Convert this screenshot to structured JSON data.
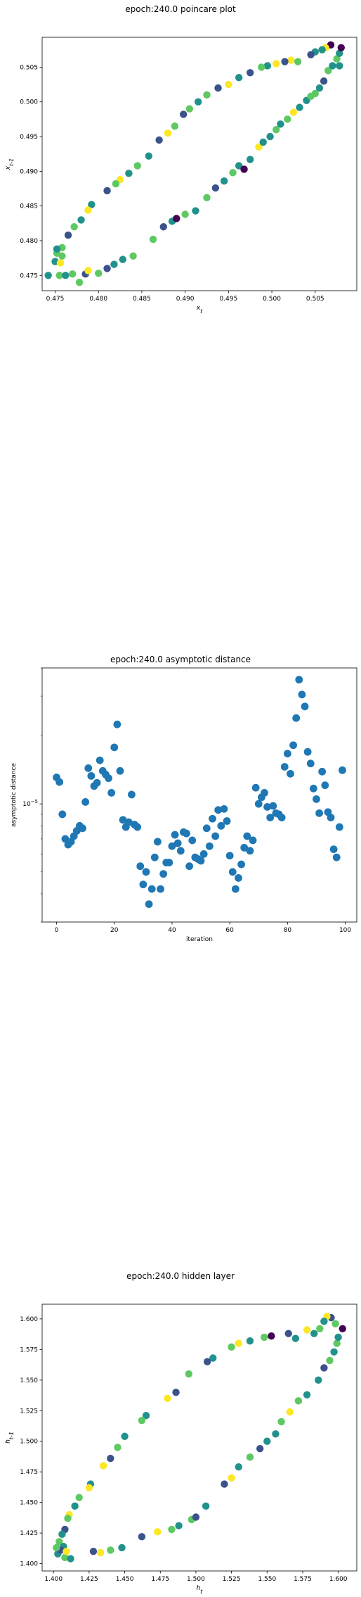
{
  "chart_data": [
    {
      "type": "scatter",
      "title": "epoch:240.0 poincare plot",
      "xlabel": "x_t",
      "ylabel": "x_{t-1}",
      "xlim": [
        0.4735,
        0.5098
      ],
      "ylim": [
        0.4728,
        0.5093
      ],
      "xticks": [
        "0.475",
        "0.480",
        "0.485",
        "0.490",
        "0.495",
        "0.500",
        "0.505"
      ],
      "yticks": [
        "0.475",
        "0.480",
        "0.485",
        "0.490",
        "0.495",
        "0.500",
        "0.505"
      ],
      "grid": false,
      "colormap": [
        "#440154",
        "#3b528b",
        "#21918c",
        "#5ec962",
        "#fde725"
      ],
      "points": [
        [
          0.4742,
          0.475,
          2
        ],
        [
          0.4755,
          0.475,
          3
        ],
        [
          0.4762,
          0.475,
          2
        ],
        [
          0.477,
          0.4752,
          3
        ],
        [
          0.4778,
          0.474,
          3
        ],
        [
          0.4785,
          0.4752,
          1
        ],
        [
          0.4788,
          0.4757,
          4
        ],
        [
          0.48,
          0.4753,
          3
        ],
        [
          0.481,
          0.476,
          1
        ],
        [
          0.4818,
          0.4766,
          2
        ],
        [
          0.4828,
          0.4773,
          2
        ],
        [
          0.484,
          0.4778,
          3
        ],
        [
          0.4863,
          0.4802,
          3
        ],
        [
          0.4875,
          0.482,
          1
        ],
        [
          0.4885,
          0.4828,
          2
        ],
        [
          0.489,
          0.4832,
          0
        ],
        [
          0.49,
          0.4838,
          3
        ],
        [
          0.4912,
          0.4843,
          2
        ],
        [
          0.4925,
          0.4862,
          3
        ],
        [
          0.4935,
          0.4876,
          1
        ],
        [
          0.4945,
          0.4886,
          2
        ],
        [
          0.4955,
          0.4898,
          3
        ],
        [
          0.4962,
          0.4908,
          2
        ],
        [
          0.4968,
          0.4903,
          0
        ],
        [
          0.4975,
          0.4917,
          2
        ],
        [
          0.4985,
          0.4935,
          4
        ],
        [
          0.499,
          0.4942,
          2
        ],
        [
          0.4998,
          0.495,
          2
        ],
        [
          0.5005,
          0.496,
          3
        ],
        [
          0.501,
          0.4968,
          2
        ],
        [
          0.5018,
          0.4975,
          3
        ],
        [
          0.5025,
          0.4985,
          4
        ],
        [
          0.5032,
          0.4992,
          2
        ],
        [
          0.504,
          0.5002,
          2
        ],
        [
          0.5045,
          0.5008,
          3
        ],
        [
          0.505,
          0.5012,
          3
        ],
        [
          0.5055,
          0.502,
          2
        ],
        [
          0.506,
          0.503,
          1
        ],
        [
          0.5065,
          0.5045,
          3
        ],
        [
          0.507,
          0.5052,
          2
        ],
        [
          0.5075,
          0.5062,
          3
        ],
        [
          0.5078,
          0.507,
          2
        ],
        [
          0.508,
          0.5078,
          0
        ],
        [
          0.5078,
          0.5052,
          2
        ],
        [
          0.5068,
          0.5082,
          0
        ],
        [
          0.5062,
          0.5078,
          4
        ],
        [
          0.5058,
          0.5075,
          2
        ],
        [
          0.505,
          0.5072,
          2
        ],
        [
          0.5045,
          0.5068,
          1
        ],
        [
          0.503,
          0.5058,
          3
        ],
        [
          0.5022,
          0.506,
          4
        ],
        [
          0.5015,
          0.5058,
          1
        ],
        [
          0.5005,
          0.5055,
          4
        ],
        [
          0.4995,
          0.5052,
          2
        ],
        [
          0.4988,
          0.505,
          3
        ],
        [
          0.4975,
          0.5042,
          1
        ],
        [
          0.4962,
          0.5035,
          2
        ],
        [
          0.495,
          0.5025,
          4
        ],
        [
          0.4938,
          0.502,
          1
        ],
        [
          0.4925,
          0.501,
          3
        ],
        [
          0.4915,
          0.5,
          2
        ],
        [
          0.4905,
          0.499,
          3
        ],
        [
          0.4898,
          0.4982,
          1
        ],
        [
          0.4888,
          0.4965,
          3
        ],
        [
          0.488,
          0.4955,
          4
        ],
        [
          0.487,
          0.4945,
          1
        ],
        [
          0.4858,
          0.4922,
          2
        ],
        [
          0.4845,
          0.4908,
          3
        ],
        [
          0.4835,
          0.4897,
          2
        ],
        [
          0.4825,
          0.4888,
          4
        ],
        [
          0.482,
          0.4882,
          3
        ],
        [
          0.481,
          0.4872,
          1
        ],
        [
          0.4792,
          0.4852,
          2
        ],
        [
          0.4788,
          0.4844,
          4
        ],
        [
          0.478,
          0.483,
          2
        ],
        [
          0.4772,
          0.482,
          3
        ],
        [
          0.4765,
          0.4808,
          1
        ],
        [
          0.4758,
          0.479,
          3
        ],
        [
          0.4752,
          0.4782,
          3
        ],
        [
          0.475,
          0.477,
          2
        ],
        [
          0.4756,
          0.4768,
          4
        ],
        [
          0.4752,
          0.4788,
          2
        ],
        [
          0.4758,
          0.4778,
          3
        ]
      ]
    },
    {
      "type": "scatter",
      "title": "epoch:240.0 asymptotic distance",
      "xlabel": "iteration",
      "ylabel": "asymptotic distance",
      "xlim": [
        -5,
        104
      ],
      "ylog": true,
      "xticks": [
        "0",
        "20",
        "40",
        "60",
        "80",
        "100"
      ],
      "ytick_label": "10^{-5}",
      "ytick_value": 1e-05,
      "grid": false,
      "color": "#1f77b4",
      "points": [
        [
          0,
          1.31e-05
        ],
        [
          1,
          1.25e-05
        ],
        [
          2,
          9e-06
        ],
        [
          3,
          7e-06
        ],
        [
          4,
          6.6e-06
        ],
        [
          5,
          6.8e-06
        ],
        [
          6,
          7.2e-06
        ],
        [
          7,
          7.6e-06
        ],
        [
          8,
          8e-06
        ],
        [
          9,
          7.8e-06
        ],
        [
          10,
          1.02e-05
        ],
        [
          11,
          1.44e-05
        ],
        [
          12,
          1.33e-05
        ],
        [
          13,
          1.2e-05
        ],
        [
          14,
          1.24e-05
        ],
        [
          15,
          1.56e-05
        ],
        [
          16,
          1.4e-05
        ],
        [
          17,
          1.35e-05
        ],
        [
          18,
          1.3e-05
        ],
        [
          19,
          1.12e-05
        ],
        [
          20,
          1.78e-05
        ],
        [
          21,
          2.25e-05
        ],
        [
          22,
          1.4e-05
        ],
        [
          23,
          8.5e-06
        ],
        [
          24,
          7.9e-06
        ],
        [
          25,
          8.3e-06
        ],
        [
          26,
          1.1e-05
        ],
        [
          27,
          8.1e-06
        ],
        [
          28,
          7.9e-06
        ],
        [
          29,
          5.3e-06
        ],
        [
          30,
          4.4e-06
        ],
        [
          31,
          5e-06
        ],
        [
          32,
          3.6e-06
        ],
        [
          33,
          4.2e-06
        ],
        [
          34,
          5.8e-06
        ],
        [
          35,
          6.8e-06
        ],
        [
          36,
          4.2e-06
        ],
        [
          37,
          4.9e-06
        ],
        [
          38,
          5.5e-06
        ],
        [
          39,
          5.5e-06
        ],
        [
          40,
          6.5e-06
        ],
        [
          41,
          7.3e-06
        ],
        [
          42,
          6.7e-06
        ],
        [
          43,
          6.2e-06
        ],
        [
          44,
          7.5e-06
        ],
        [
          45,
          7.4e-06
        ],
        [
          46,
          5.3e-06
        ],
        [
          47,
          6.9e-06
        ],
        [
          48,
          5.8e-06
        ],
        [
          49,
          5.7e-06
        ],
        [
          50,
          5.6e-06
        ],
        [
          51,
          6e-06
        ],
        [
          52,
          7.8e-06
        ],
        [
          53,
          6.5e-06
        ],
        [
          54,
          8.6e-06
        ],
        [
          55,
          7.2e-06
        ],
        [
          56,
          9.4e-06
        ],
        [
          57,
          8e-06
        ],
        [
          58,
          9.5e-06
        ],
        [
          59,
          8.4e-06
        ],
        [
          60,
          5.9e-06
        ],
        [
          61,
          5e-06
        ],
        [
          62,
          4.2e-06
        ],
        [
          63,
          4.7e-06
        ],
        [
          64,
          5.4e-06
        ],
        [
          65,
          6.4e-06
        ],
        [
          66,
          7.2e-06
        ],
        [
          67,
          6.2e-06
        ],
        [
          68,
          6.9e-06
        ],
        [
          69,
          1.18e-05
        ],
        [
          70,
          1e-05
        ],
        [
          71,
          1.07e-05
        ],
        [
          72,
          1.12e-05
        ],
        [
          73,
          9.7e-06
        ],
        [
          74,
          8.7e-06
        ],
        [
          75,
          9.8e-06
        ],
        [
          76,
          9.1e-06
        ],
        [
          77,
          9e-06
        ],
        [
          78,
          8.7e-06
        ],
        [
          79,
          1.46e-05
        ],
        [
          80,
          1.67e-05
        ],
        [
          81,
          1.36e-05
        ],
        [
          82,
          1.82e-05
        ],
        [
          83,
          2.4e-05
        ],
        [
          84,
          3.55e-05
        ],
        [
          85,
          3.05e-05
        ],
        [
          86,
          2.7e-05
        ],
        [
          87,
          1.7e-05
        ],
        [
          88,
          1.51e-05
        ],
        [
          89,
          1.17e-05
        ],
        [
          90,
          1.05e-05
        ],
        [
          91,
          9.1e-06
        ],
        [
          92,
          1.39e-05
        ],
        [
          93,
          1.21e-05
        ],
        [
          94,
          9.2e-06
        ],
        [
          95,
          8.7e-06
        ],
        [
          96,
          6.3e-06
        ],
        [
          97,
          5.8e-06
        ],
        [
          98,
          7.9e-06
        ],
        [
          99,
          1.41e-05
        ]
      ]
    },
    {
      "type": "scatter",
      "title": "epoch:240.0 hidden layer",
      "xlabel": "h_t",
      "ylabel": "h_{t-1}",
      "xlim": [
        1.392,
        1.613
      ],
      "ylim": [
        1.394,
        1.612
      ],
      "xticks": [
        "1.400",
        "1.425",
        "1.450",
        "1.475",
        "1.500",
        "1.525",
        "1.550",
        "1.575",
        "1.600"
      ],
      "yticks": [
        "1.400",
        "1.425",
        "1.450",
        "1.475",
        "1.500",
        "1.525",
        "1.550",
        "1.575",
        "1.600"
      ],
      "grid": false,
      "colormap": [
        "#440154",
        "#3b528b",
        "#21918c",
        "#5ec962",
        "#fde725"
      ],
      "points": [
        [
          1.403,
          1.408,
          2
        ],
        [
          1.408,
          1.405,
          3
        ],
        [
          1.412,
          1.404,
          2
        ],
        [
          1.428,
          1.41,
          1
        ],
        [
          1.433,
          1.409,
          4
        ],
        [
          1.44,
          1.411,
          3
        ],
        [
          1.448,
          1.413,
          2
        ],
        [
          1.462,
          1.422,
          1
        ],
        [
          1.473,
          1.426,
          4
        ],
        [
          1.483,
          1.428,
          3
        ],
        [
          1.488,
          1.431,
          2
        ],
        [
          1.497,
          1.436,
          3
        ],
        [
          1.5,
          1.438,
          1
        ],
        [
          1.507,
          1.447,
          2
        ],
        [
          1.52,
          1.465,
          1
        ],
        [
          1.525,
          1.47,
          4
        ],
        [
          1.53,
          1.479,
          2
        ],
        [
          1.538,
          1.487,
          3
        ],
        [
          1.545,
          1.494,
          1
        ],
        [
          1.55,
          1.5,
          2
        ],
        [
          1.556,
          1.506,
          2
        ],
        [
          1.56,
          1.516,
          3
        ],
        [
          1.566,
          1.524,
          4
        ],
        [
          1.572,
          1.533,
          3
        ],
        [
          1.578,
          1.538,
          2
        ],
        [
          1.586,
          1.55,
          2
        ],
        [
          1.59,
          1.56,
          1
        ],
        [
          1.594,
          1.566,
          3
        ],
        [
          1.597,
          1.573,
          2
        ],
        [
          1.599,
          1.58,
          3
        ],
        [
          1.6,
          1.585,
          2
        ],
        [
          1.603,
          1.592,
          0
        ],
        [
          1.598,
          1.596,
          3
        ],
        [
          1.595,
          1.601,
          1
        ],
        [
          1.592,
          1.602,
          4
        ],
        [
          1.59,
          1.598,
          2
        ],
        [
          1.587,
          1.592,
          3
        ],
        [
          1.583,
          1.588,
          2
        ],
        [
          1.578,
          1.591,
          4
        ],
        [
          1.57,
          1.584,
          2
        ],
        [
          1.565,
          1.588,
          1
        ],
        [
          1.553,
          1.586,
          0
        ],
        [
          1.548,
          1.585,
          3
        ],
        [
          1.538,
          1.582,
          2
        ],
        [
          1.53,
          1.58,
          4
        ],
        [
          1.525,
          1.577,
          3
        ],
        [
          1.512,
          1.568,
          2
        ],
        [
          1.508,
          1.565,
          1
        ],
        [
          1.495,
          1.555,
          3
        ],
        [
          1.486,
          1.54,
          1
        ],
        [
          1.48,
          1.535,
          4
        ],
        [
          1.465,
          1.521,
          2
        ],
        [
          1.462,
          1.517,
          3
        ],
        [
          1.45,
          1.504,
          2
        ],
        [
          1.445,
          1.495,
          3
        ],
        [
          1.44,
          1.486,
          1
        ],
        [
          1.435,
          1.48,
          4
        ],
        [
          1.426,
          1.465,
          2
        ],
        [
          1.425,
          1.462,
          4
        ],
        [
          1.418,
          1.454,
          3
        ],
        [
          1.415,
          1.447,
          2
        ],
        [
          1.411,
          1.44,
          4
        ],
        [
          1.41,
          1.437,
          3
        ],
        [
          1.408,
          1.428,
          1
        ],
        [
          1.406,
          1.424,
          2
        ],
        [
          1.404,
          1.418,
          3
        ],
        [
          1.407,
          1.414,
          2
        ],
        [
          1.405,
          1.411,
          1
        ],
        [
          1.409,
          1.41,
          4
        ],
        [
          1.402,
          1.413,
          3
        ]
      ]
    }
  ]
}
